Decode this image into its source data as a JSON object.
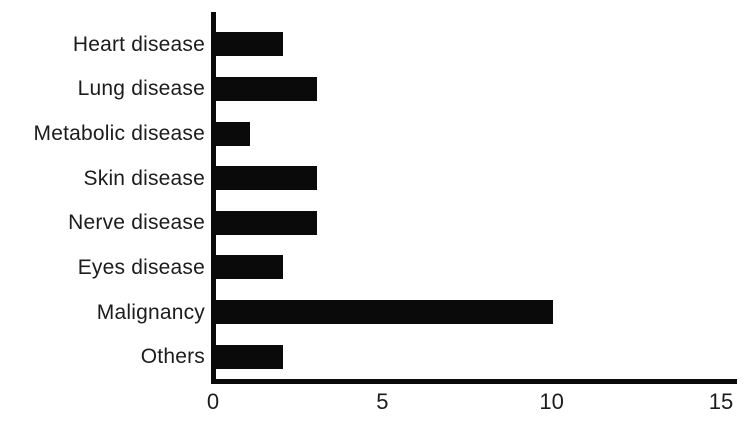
{
  "chart_data": {
    "type": "bar",
    "orientation": "horizontal",
    "title": "",
    "xlabel": "",
    "ylabel": "",
    "categories": [
      "Heart disease",
      "Lung disease",
      "Metabolic disease",
      "Skin disease",
      "Nerve disease",
      "Eyes disease",
      "Malignancy",
      "Others"
    ],
    "values": [
      2,
      3,
      1,
      3,
      3,
      2,
      10,
      2
    ],
    "xlim": [
      0,
      15
    ],
    "x_ticks": [
      0,
      5,
      10,
      15
    ],
    "grid": false,
    "legend": false,
    "colors": {
      "bar": "#0a0a0a",
      "axis": "#0a0a0a",
      "text": "#1c1c1c",
      "background": "#ffffff"
    }
  }
}
